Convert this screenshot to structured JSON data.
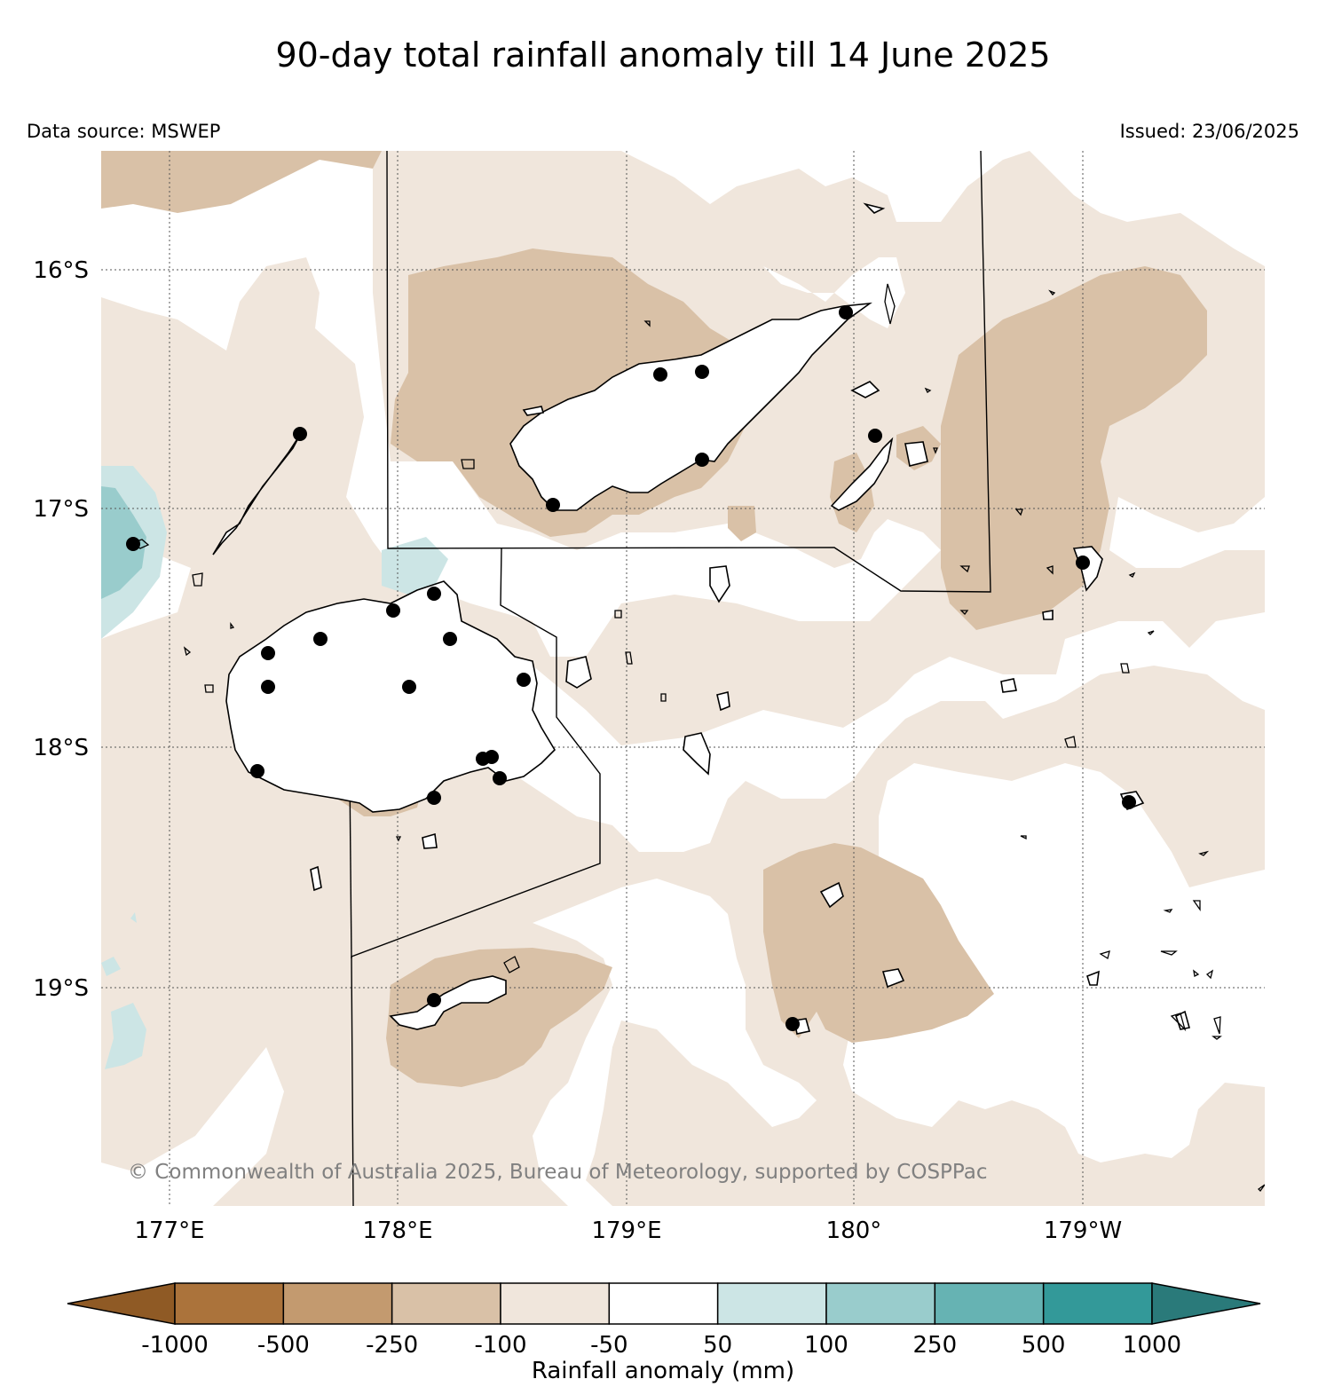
{
  "title": "90-day total rainfall anomaly till 14 June 2025",
  "data_source": "Data source: MSWEP",
  "issued": "Issued: 23/06/2025",
  "copyright": "© Commonwealth of Australia 2025, Bureau of Meteorology, supported by COSPPac",
  "map": {
    "latitude_labels": [
      "16°S",
      "17°S",
      "18°S",
      "19°S"
    ],
    "longitude_labels": [
      "177°E",
      "178°E",
      "179°E",
      "180°",
      "179°W"
    ],
    "gridlines": true,
    "stations_shown": true
  },
  "colorbar": {
    "label": "Rainfall anomaly (mm)",
    "ticks": [
      "-1000",
      "-500",
      "-250",
      "-100",
      "-50",
      "50",
      "100",
      "250",
      "500",
      "1000"
    ],
    "colors": [
      "#8f5a25",
      "#ab733b",
      "#c39a6f",
      "#d9c1a7",
      "#f0e6dc",
      "#ffffff",
      "#cce5e5",
      "#99cccc",
      "#66b3b3",
      "#339999",
      "#2a7a7a"
    ],
    "extend": "both"
  }
}
